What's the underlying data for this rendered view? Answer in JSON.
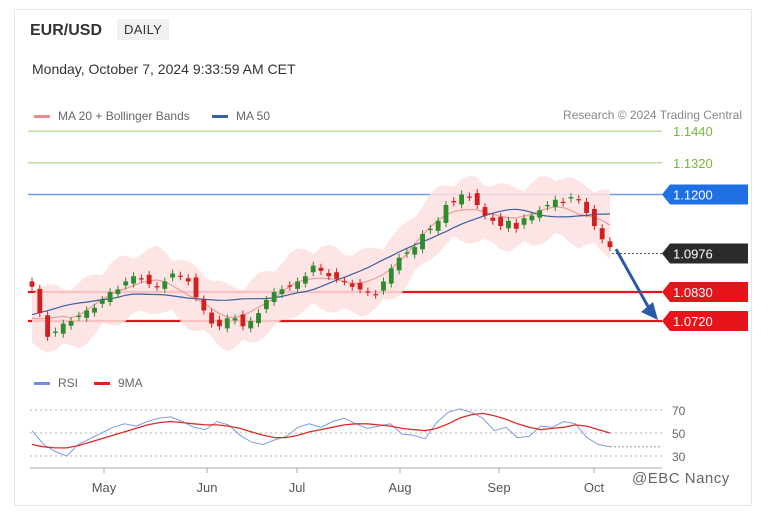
{
  "header": {
    "symbol": "EUR/USD",
    "timeframe": "DAILY",
    "datetime": "Monday, October 7, 2024 9:33:59 AM CET"
  },
  "legend_main": [
    {
      "label": "MA 20 + Bollinger Bands",
      "color": "#ef8a8a"
    },
    {
      "label": "MA 50",
      "color": "#3b5fa0"
    }
  ],
  "legend_rsi": [
    {
      "label": "RSI",
      "color": "#6f8fd6"
    },
    {
      "label": "9MA",
      "color": "#e02020"
    }
  ],
  "credit": "Research © 2024 Trading Central",
  "watermark": "@EBC Nancy",
  "colors": {
    "resistance_green": "#7cb342",
    "resistance_blue": "#1f6fe5",
    "support_red": "#e8141c",
    "last_price_bg": "#2b2b2b",
    "candle_up": "#2e8b2e",
    "candle_down": "#d21f1f",
    "band_fill": "#fde0e0",
    "arrow": "#2a5aa8"
  },
  "chart_data": [
    {
      "type": "candlestick",
      "title": "EUR/USD",
      "x_labels": [
        "May",
        "Jun",
        "Jul",
        "Aug",
        "Sep",
        "Oct"
      ],
      "levels": [
        {
          "value": 1.144,
          "label": "1.1440",
          "kind": "resistance"
        },
        {
          "value": 1.132,
          "label": "1.1320",
          "kind": "resistance"
        },
        {
          "value": 1.12,
          "label": "1.1200",
          "kind": "resistance"
        },
        {
          "value": 1.0976,
          "label": "1.0976",
          "kind": "last"
        },
        {
          "value": 1.083,
          "label": "1.0830",
          "kind": "support"
        },
        {
          "value": 1.072,
          "label": "1.0720",
          "kind": "support"
        }
      ],
      "close_path": [
        1.085,
        1.075,
        1.066,
        1.068,
        1.071,
        1.072,
        1.074,
        1.076,
        1.077,
        1.08,
        1.083,
        1.084,
        1.087,
        1.089,
        1.088,
        1.086,
        1.085,
        1.087,
        1.09,
        1.089,
        1.087,
        1.081,
        1.076,
        1.071,
        1.07,
        1.073,
        1.073,
        1.07,
        1.072,
        1.075,
        1.08,
        1.083,
        1.084,
        1.085,
        1.087,
        1.089,
        1.093,
        1.091,
        1.089,
        1.088,
        1.087,
        1.085,
        1.084,
        1.083,
        1.082,
        1.087,
        1.092,
        1.096,
        1.098,
        1.1,
        1.105,
        1.107,
        1.11,
        1.116,
        1.117,
        1.12,
        1.119,
        1.116,
        1.112,
        1.11,
        1.108,
        1.11,
        1.107,
        1.111,
        1.112,
        1.114,
        1.116,
        1.118,
        1.117,
        1.119,
        1.118,
        1.113,
        1.108,
        1.103,
        1.1
      ],
      "annotation": "projected move down toward 1.0830 / 1.0720"
    },
    {
      "type": "line",
      "title": "RSI",
      "ylim": [
        20,
        80
      ],
      "y_ticks": [
        70,
        50,
        30
      ],
      "series": [
        {
          "name": "RSI",
          "values": [
            52,
            40,
            34,
            30,
            40,
            45,
            50,
            55,
            58,
            56,
            60,
            63,
            64,
            60,
            55,
            53,
            60,
            57,
            48,
            42,
            40,
            44,
            47,
            55,
            58,
            55,
            60,
            63,
            58,
            54,
            56,
            58,
            49,
            48,
            45,
            59,
            68,
            71,
            68,
            63,
            52,
            55,
            46,
            47,
            56,
            55,
            60,
            58,
            46,
            40,
            38
          ]
        },
        {
          "name": "9MA",
          "values": [
            40,
            38,
            37,
            37,
            39,
            42,
            45,
            48,
            51,
            54,
            57,
            59,
            60,
            59,
            58,
            57,
            57,
            56,
            54,
            51,
            48,
            46,
            46,
            48,
            51,
            53,
            55,
            57,
            58,
            58,
            57,
            56,
            54,
            53,
            52,
            54,
            58,
            63,
            66,
            67,
            65,
            62,
            58,
            55,
            53,
            54,
            55,
            57,
            56,
            53,
            50
          ]
        }
      ]
    }
  ]
}
